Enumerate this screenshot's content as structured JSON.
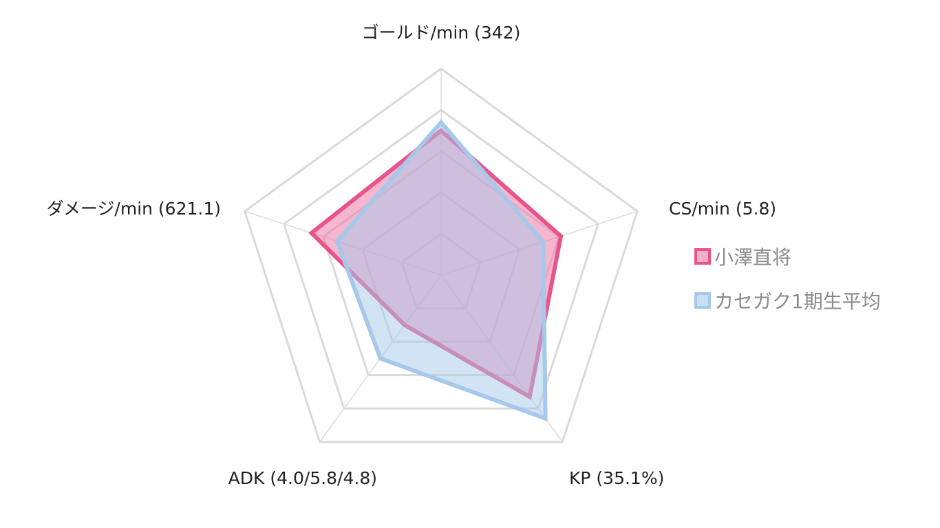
{
  "chart_data": {
    "type": "radar",
    "axes": [
      {
        "label": "ゴールド/min (342)"
      },
      {
        "label": "CS/min (5.8)"
      },
      {
        "label": "KP (35.1%)"
      },
      {
        "label": "ADK (4.0/5.8/4.8)"
      },
      {
        "label": "ダメージ/min (621.1)"
      }
    ],
    "rlim": [
      0,
      5
    ],
    "grid_levels": [
      1,
      2,
      3,
      4,
      5
    ],
    "series": [
      {
        "name": "小澤直将",
        "values": [
          3.5,
          3.05,
          3.65,
          1.5,
          3.3
        ],
        "stroke": "#e8548a",
        "fill": "#f07aa8",
        "fill_opacity": 0.55
      },
      {
        "name": "カセガク1期生平均",
        "values": [
          3.7,
          2.6,
          4.3,
          2.5,
          2.65
        ],
        "stroke": "#a6c8ea",
        "fill": "#a6c8ea",
        "fill_opacity": 0.5
      }
    ],
    "legend": "right"
  }
}
